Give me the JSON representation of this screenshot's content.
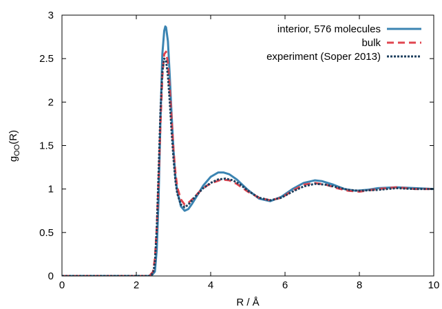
{
  "chart_data": {
    "type": "line",
    "xlabel": "R / Å",
    "ylabel": {
      "main": "g",
      "sub": "OO",
      "tail": "(R)"
    },
    "xlim": [
      0,
      10
    ],
    "ylim": [
      0,
      3
    ],
    "xticks": [
      {
        "value": 0,
        "label": "0"
      },
      {
        "value": 2,
        "label": "2"
      },
      {
        "value": 4,
        "label": "4"
      },
      {
        "value": 6,
        "label": "6"
      },
      {
        "value": 8,
        "label": "8"
      },
      {
        "value": 10,
        "label": "10"
      }
    ],
    "yticks": [
      {
        "value": 0,
        "label": "0"
      },
      {
        "value": 0.5,
        "label": "0.5"
      },
      {
        "value": 1,
        "label": "1"
      },
      {
        "value": 1.5,
        "label": "1.5"
      },
      {
        "value": 2,
        "label": "2"
      },
      {
        "value": 2.5,
        "label": "2.5"
      },
      {
        "value": 3,
        "label": "3"
      }
    ],
    "grid": false,
    "legend_position": "top-right",
    "series": [
      {
        "name": "interior, 576 molecules",
        "color": "#3b84b2",
        "dash": "solid",
        "x": [
          0,
          2.0,
          2.4,
          2.5,
          2.55,
          2.6,
          2.65,
          2.7,
          2.75,
          2.78,
          2.8,
          2.85,
          2.9,
          2.95,
          3.0,
          3.05,
          3.1,
          3.2,
          3.3,
          3.4,
          3.5,
          3.6,
          3.8,
          4.0,
          4.2,
          4.35,
          4.5,
          4.7,
          5.0,
          5.3,
          5.6,
          5.9,
          6.2,
          6.5,
          6.8,
          7.0,
          7.3,
          7.6,
          7.9,
          8.2,
          8.5,
          9.0,
          9.5,
          10.0
        ],
        "y": [
          0,
          0,
          0,
          0.05,
          0.3,
          0.9,
          1.8,
          2.55,
          2.82,
          2.87,
          2.86,
          2.7,
          2.3,
          1.85,
          1.45,
          1.15,
          0.98,
          0.8,
          0.75,
          0.77,
          0.83,
          0.9,
          1.04,
          1.14,
          1.19,
          1.19,
          1.17,
          1.11,
          0.99,
          0.89,
          0.86,
          0.91,
          1.0,
          1.07,
          1.1,
          1.09,
          1.05,
          1.0,
          0.98,
          0.99,
          1.01,
          1.02,
          1.01,
          1.0
        ]
      },
      {
        "name": "bulk",
        "color": "#e0454f",
        "dash": "dashed",
        "x": [
          0,
          2.0,
          2.35,
          2.45,
          2.5,
          2.55,
          2.6,
          2.65,
          2.7,
          2.75,
          2.8,
          2.85,
          2.9,
          2.95,
          3.0,
          3.05,
          3.1,
          3.2,
          3.3,
          3.4,
          3.5,
          3.7,
          3.9,
          4.1,
          4.3,
          4.5,
          4.7,
          5.0,
          5.3,
          5.6,
          5.9,
          6.2,
          6.5,
          6.8,
          7.1,
          7.4,
          7.7,
          8.0,
          8.5,
          9.0,
          9.5,
          10.0
        ],
        "y": [
          0,
          0,
          0,
          0.05,
          0.2,
          0.55,
          1.1,
          1.75,
          2.3,
          2.55,
          2.58,
          2.45,
          2.15,
          1.8,
          1.45,
          1.2,
          1.02,
          0.88,
          0.82,
          0.84,
          0.88,
          0.97,
          1.04,
          1.08,
          1.11,
          1.1,
          1.06,
          0.97,
          0.9,
          0.87,
          0.9,
          0.98,
          1.05,
          1.07,
          1.05,
          1.01,
          0.98,
          0.97,
          1.0,
          1.02,
          1.0,
          1.0
        ]
      },
      {
        "name": "experiment (Soper 2013)",
        "color": "#1d3f5e",
        "dash": "dotted",
        "x": [
          0,
          2.0,
          2.35,
          2.45,
          2.5,
          2.55,
          2.6,
          2.65,
          2.7,
          2.75,
          2.8,
          2.85,
          2.9,
          2.95,
          3.0,
          3.05,
          3.1,
          3.2,
          3.3,
          3.4,
          3.6,
          3.8,
          4.0,
          4.2,
          4.4,
          4.6,
          4.8,
          5.0,
          5.3,
          5.6,
          5.9,
          6.2,
          6.5,
          6.8,
          7.1,
          7.4,
          7.7,
          8.0,
          8.5,
          9.0,
          9.5,
          10.0
        ],
        "y": [
          0,
          0,
          0,
          0.03,
          0.15,
          0.55,
          1.2,
          1.9,
          2.35,
          2.5,
          2.48,
          2.3,
          2.0,
          1.65,
          1.35,
          1.1,
          0.95,
          0.82,
          0.79,
          0.82,
          0.92,
          1.01,
          1.07,
          1.11,
          1.12,
          1.1,
          1.05,
          0.98,
          0.9,
          0.87,
          0.9,
          0.97,
          1.03,
          1.06,
          1.05,
          1.02,
          0.99,
          0.98,
          0.99,
          1.01,
          1.0,
          1.0
        ]
      }
    ]
  }
}
